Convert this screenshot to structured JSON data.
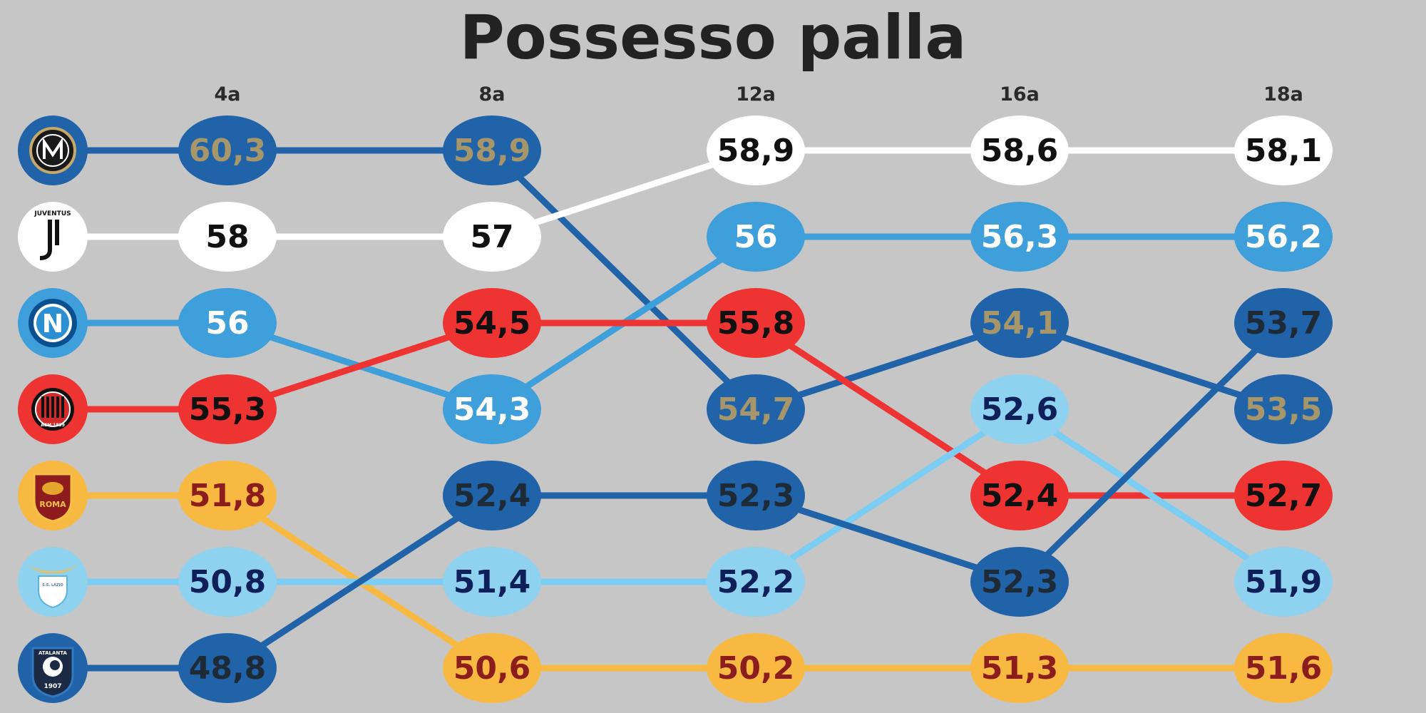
{
  "chart_data": {
    "type": "line",
    "title": "Possesso palla",
    "categories": [
      "4a",
      "8a",
      "12a",
      "16a",
      "18a"
    ],
    "series": [
      {
        "name": "Inter",
        "logo_text": "",
        "line_color": "#2163a8",
        "fill": "#2163a8",
        "text_color": "#a7966a",
        "values": [
          60.3,
          58.9,
          54.7,
          54.1,
          53.5
        ],
        "labels": [
          "60,3",
          "58,9",
          "54,7",
          "54,1",
          "53,5"
        ]
      },
      {
        "name": "Juventus",
        "logo_text": "JUVENTUS",
        "line_color": "#ffffff",
        "fill": "#ffffff",
        "text_color": "#111111",
        "values": [
          58,
          57,
          58.9,
          58.6,
          58.1
        ],
        "labels": [
          "58",
          "57",
          "58,9",
          "58,6",
          "58,1"
        ]
      },
      {
        "name": "Napoli",
        "logo_text": "N",
        "line_color": "#3f9fda",
        "fill": "#3f9fda",
        "text_color": "#ffffff",
        "values": [
          56,
          54.3,
          56,
          56.3,
          56.2
        ],
        "labels": [
          "56",
          "54,3",
          "56",
          "56,3",
          "56,2"
        ]
      },
      {
        "name": "Milan",
        "logo_text": "ACM 1899",
        "line_color": "#ee3433",
        "fill": "#ee3433",
        "text_color": "#111111",
        "values": [
          55.3,
          54.5,
          55.8,
          52.4,
          52.7
        ],
        "labels": [
          "55,3",
          "54,5",
          "55,8",
          "52,4",
          "52,7"
        ]
      },
      {
        "name": "Roma",
        "logo_text": "ROMA",
        "line_color": "#f8b942",
        "fill": "#f8b942",
        "text_color": "#8c1d1d",
        "values": [
          51.8,
          50.6,
          50.2,
          51.3,
          51.6
        ],
        "labels": [
          "51,8",
          "50,6",
          "50,2",
          "51,3",
          "51,6"
        ]
      },
      {
        "name": "Lazio",
        "logo_text": "S.S. LAZIO",
        "line_color": "#7bcdf3",
        "fill": "#8ed2ef",
        "text_color": "#0f1f5a",
        "values": [
          50.8,
          51.4,
          52.2,
          52.6,
          51.9
        ],
        "labels": [
          "50,8",
          "51,4",
          "52,2",
          "52,6",
          "51,9"
        ]
      },
      {
        "name": "Atalanta",
        "logo_text": "ATALANTA 1907",
        "line_color": "#2163a8",
        "fill": "#2163a8",
        "text_color": "#1e2a36",
        "values": [
          48.8,
          52.4,
          52.3,
          52.3,
          53.7
        ],
        "labels": [
          "48,8",
          "52,4",
          "52,3",
          "52,3",
          "53,7"
        ]
      }
    ],
    "notes": "Bump chart: at each column the teams are ranked by value; ellipse shows the value, line connects each team across columns."
  }
}
